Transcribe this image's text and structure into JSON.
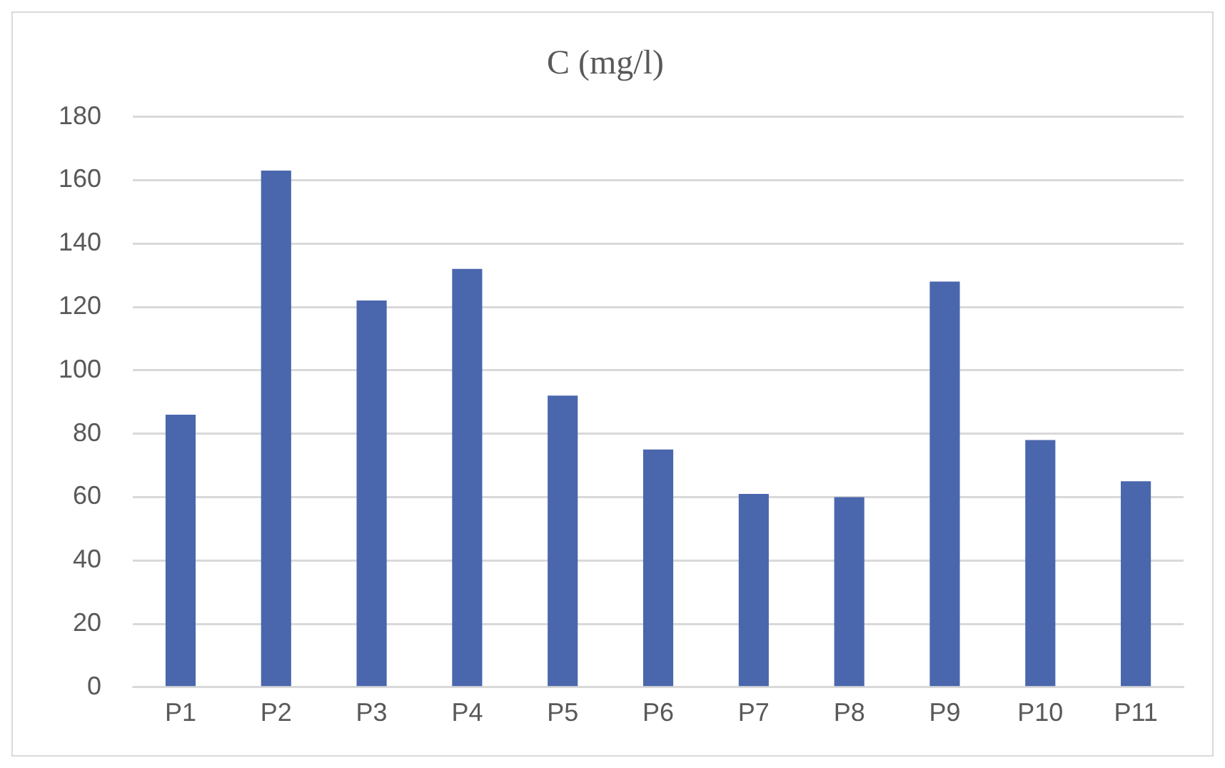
{
  "chart_data": {
    "type": "bar",
    "title": "C (mg/l)",
    "categories": [
      "P1",
      "P2",
      "P3",
      "P4",
      "P5",
      "P6",
      "P7",
      "P8",
      "P9",
      "P10",
      "P11"
    ],
    "values": [
      86,
      163,
      122,
      132,
      92,
      75,
      61,
      60,
      128,
      78,
      65
    ],
    "color": "#4a67ad",
    "ylim": [
      0,
      180
    ],
    "yticks": [
      0,
      20,
      40,
      60,
      80,
      100,
      120,
      140,
      160,
      180
    ],
    "grid": "y",
    "legend": false
  }
}
